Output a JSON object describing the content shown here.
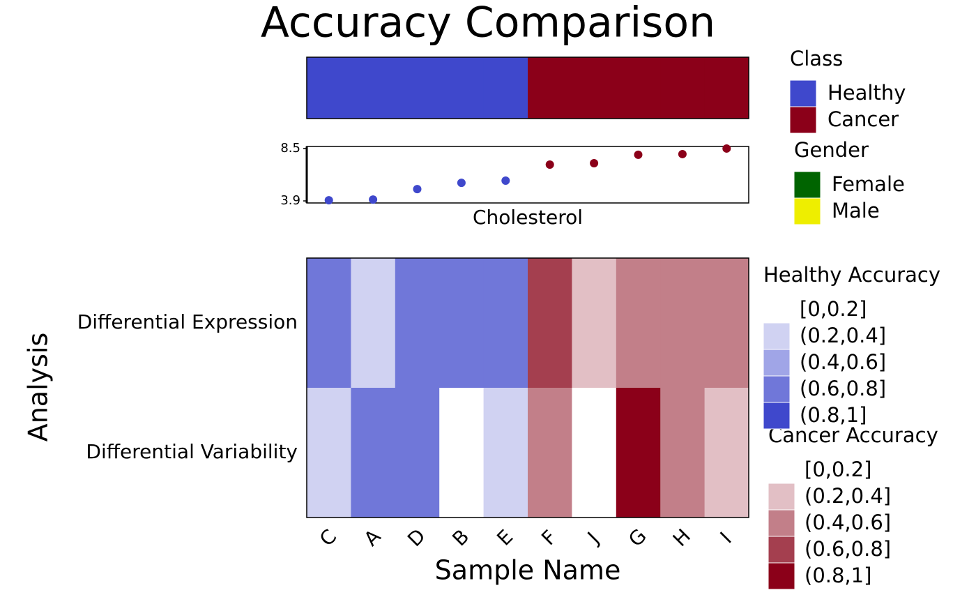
{
  "chart_data": {
    "type": "heatmap",
    "title": "Accuracy Comparison",
    "categories": [
      "C",
      "A",
      "D",
      "B",
      "E",
      "F",
      "J",
      "G",
      "H",
      "I"
    ],
    "x_label": "Sample Name",
    "y_label": "Analysis",
    "rows": [
      "Differential Expression",
      "Differential Variability"
    ],
    "cells": [
      [
        "(0.6,0.8]",
        "(0.2,0.4]",
        "(0.6,0.8]",
        "(0.6,0.8]",
        "(0.6,0.8]",
        "(0.6,0.8]",
        "(0.2,0.4]",
        "(0.4,0.6]",
        "(0.4,0.6]",
        "(0.4,0.6]"
      ],
      [
        "(0.2,0.4]",
        "(0.6,0.8]",
        "(0.6,0.8]",
        "[0,0.2]",
        "(0.2,0.4]",
        "(0.4,0.6]",
        "[0,0.2]",
        "(0.8,1]",
        "(0.4,0.6]",
        "(0.2,0.4]"
      ]
    ],
    "class": {
      "title": "Class",
      "values": [
        "Healthy",
        "Healthy",
        "Healthy",
        "Healthy",
        "Healthy",
        "Cancer",
        "Cancer",
        "Cancer",
        "Cancer",
        "Cancer"
      ],
      "legend": [
        {
          "name": "Healthy",
          "color": "#3f48cc"
        },
        {
          "name": "Cancer",
          "color": "#8b0019"
        }
      ]
    },
    "gender": {
      "title": "Gender",
      "legend": [
        {
          "name": "Female",
          "color": "#006400"
        },
        {
          "name": "Male",
          "color": "#eeee00"
        }
      ]
    },
    "cholesterol": {
      "label": "Cholesterol",
      "values": [
        3.96,
        4.02,
        4.94,
        5.49,
        5.68,
        7.09,
        7.21,
        7.95,
        8.01,
        8.5
      ],
      "ylim": [
        3.72,
        8.68
      ],
      "yticks": [
        3.9,
        8.5
      ]
    },
    "healthy_legend": {
      "title": "Healthy Accuracy",
      "bins": [
        "[0,0.2]",
        "(0.2,0.4]",
        "(0.4,0.6]",
        "(0.6,0.8]",
        "(0.8,1]"
      ],
      "colors": [
        "#ffffff",
        "#d0d2f2",
        "#a0a5e7",
        "#7077d9",
        "#3f48cc"
      ]
    },
    "cancer_legend": {
      "title": "Cancer Accuracy",
      "bins": [
        "[0,0.2]",
        "(0.2,0.4]",
        "(0.4,0.6]",
        "(0.6,0.8]",
        "(0.8,1]"
      ],
      "colors": [
        "#ffffff",
        "#e2bfc5",
        "#c27f89",
        "#a43f4f",
        "#8b0019"
      ]
    }
  }
}
